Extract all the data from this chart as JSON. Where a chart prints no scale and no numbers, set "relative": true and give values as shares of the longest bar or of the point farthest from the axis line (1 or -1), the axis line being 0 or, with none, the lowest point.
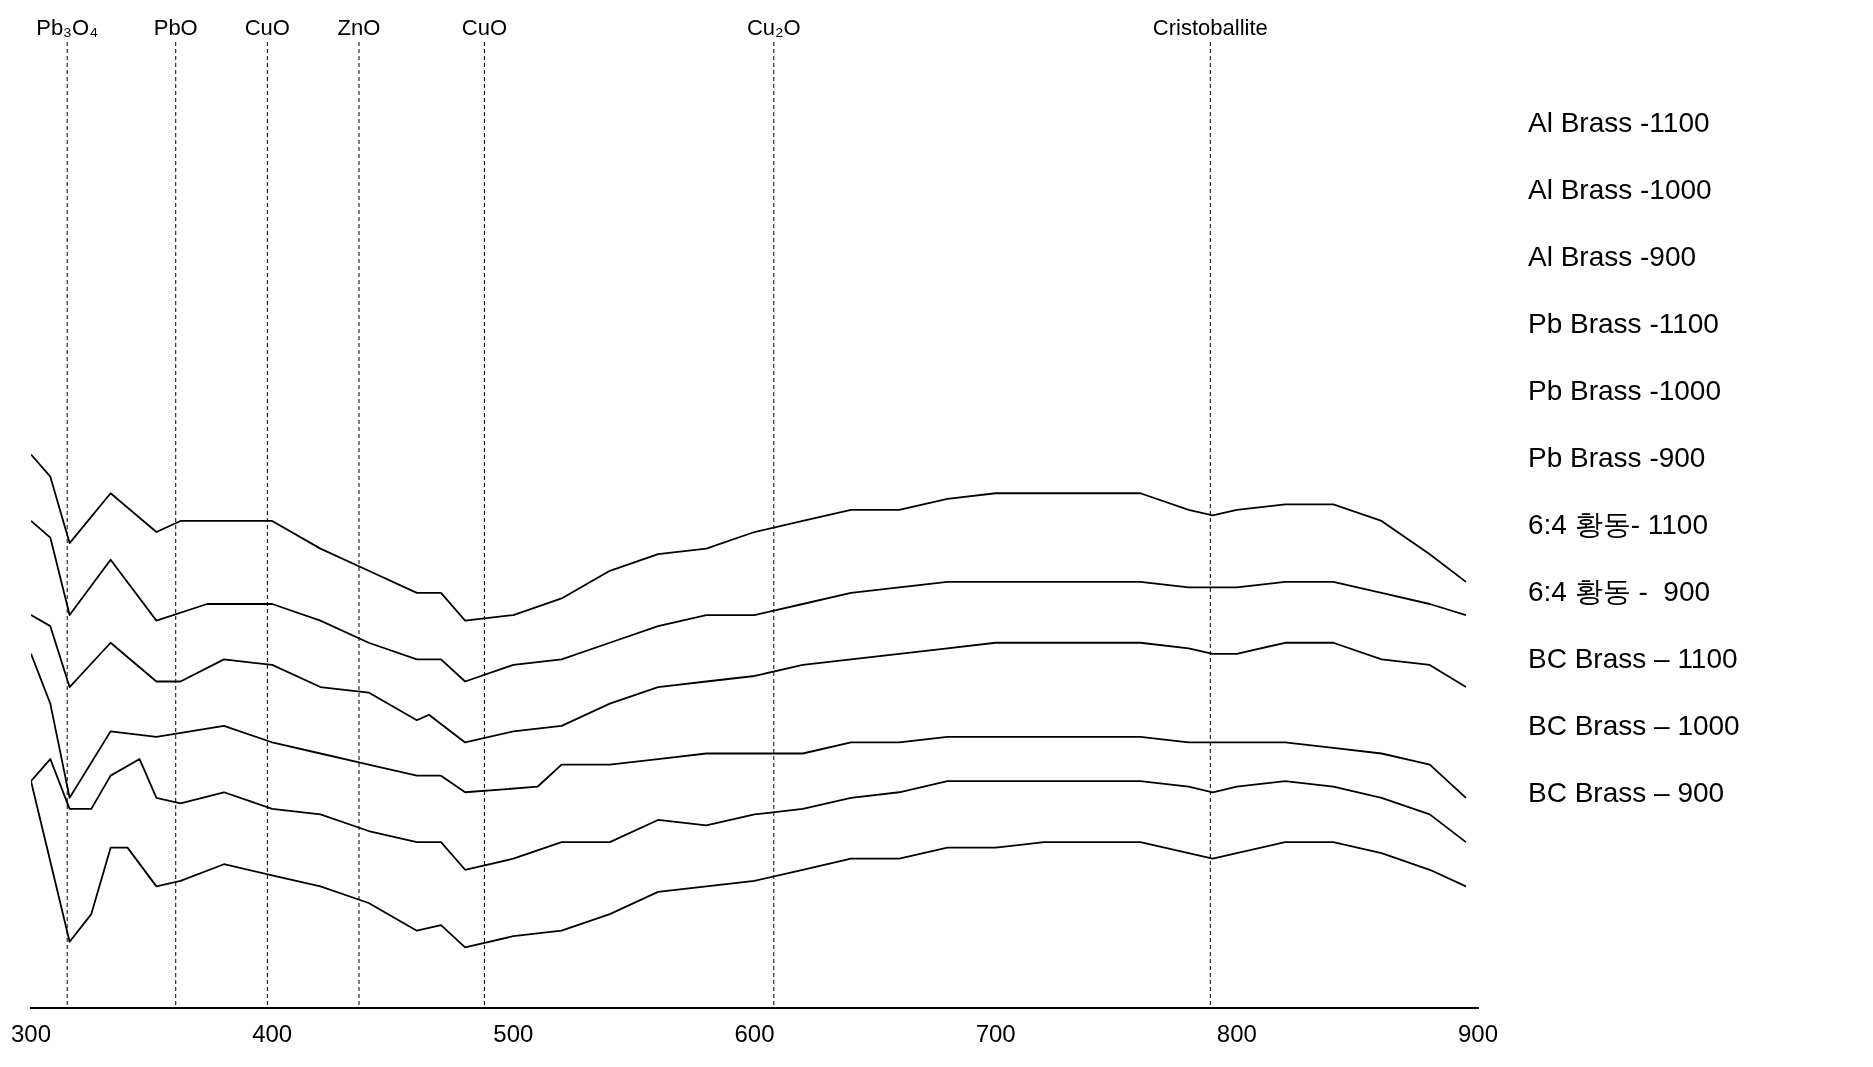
{
  "chart_data": {
    "type": "line",
    "relative": true,
    "xlim": [
      300,
      900
    ],
    "xticks": [
      300,
      400,
      500,
      600,
      700,
      800,
      900
    ],
    "grid": false,
    "legend": false,
    "marker": "none",
    "line_style": "solid",
    "series": [
      {
        "color": "#000000",
        "x": [
          300,
          308,
          316,
          333,
          352,
          362,
          380,
          400,
          420,
          440,
          460,
          470,
          480,
          500,
          520,
          540,
          560,
          580,
          600,
          620,
          640,
          660,
          680,
          700,
          720,
          740,
          760,
          780,
          790,
          800,
          820,
          840,
          860,
          880,
          895
        ],
        "values": [
          1.0,
          0.96,
          0.84,
          0.93,
          0.86,
          0.88,
          0.88,
          0.88,
          0.83,
          0.79,
          0.75,
          0.75,
          0.7,
          0.71,
          0.74,
          0.79,
          0.82,
          0.83,
          0.86,
          0.88,
          0.9,
          0.9,
          0.92,
          0.93,
          0.93,
          0.93,
          0.93,
          0.9,
          0.89,
          0.9,
          0.91,
          0.91,
          0.88,
          0.82,
          0.77
        ]
      },
      {
        "color": "#000000",
        "x": [
          300,
          308,
          316,
          333,
          352,
          373,
          400,
          420,
          440,
          460,
          470,
          480,
          500,
          520,
          540,
          560,
          580,
          600,
          620,
          640,
          660,
          680,
          700,
          720,
          740,
          760,
          780,
          790,
          800,
          820,
          840,
          860,
          880,
          895
        ],
        "values": [
          0.88,
          0.85,
          0.71,
          0.81,
          0.7,
          0.73,
          0.73,
          0.7,
          0.66,
          0.63,
          0.63,
          0.59,
          0.62,
          0.63,
          0.66,
          0.69,
          0.71,
          0.71,
          0.73,
          0.75,
          0.76,
          0.77,
          0.77,
          0.77,
          0.77,
          0.77,
          0.76,
          0.76,
          0.76,
          0.77,
          0.77,
          0.75,
          0.73,
          0.71
        ]
      },
      {
        "color": "#000000",
        "x": [
          300,
          308,
          316,
          333,
          352,
          362,
          380,
          400,
          420,
          440,
          460,
          465,
          480,
          500,
          520,
          540,
          560,
          580,
          600,
          620,
          640,
          660,
          680,
          700,
          720,
          740,
          760,
          780,
          790,
          800,
          820,
          840,
          860,
          880,
          895
        ],
        "values": [
          0.71,
          0.69,
          0.58,
          0.66,
          0.59,
          0.59,
          0.63,
          0.62,
          0.58,
          0.57,
          0.52,
          0.53,
          0.48,
          0.5,
          0.51,
          0.55,
          0.58,
          0.59,
          0.6,
          0.62,
          0.63,
          0.64,
          0.65,
          0.66,
          0.66,
          0.66,
          0.66,
          0.65,
          0.64,
          0.64,
          0.66,
          0.66,
          0.63,
          0.62,
          0.58
        ]
      },
      {
        "color": "#000000",
        "x": [
          300,
          308,
          316,
          333,
          352,
          380,
          400,
          420,
          440,
          460,
          470,
          480,
          510,
          520,
          540,
          560,
          580,
          600,
          620,
          640,
          660,
          680,
          700,
          720,
          740,
          760,
          780,
          790,
          800,
          820,
          840,
          860,
          880,
          895
        ],
        "values": [
          0.64,
          0.55,
          0.38,
          0.5,
          0.49,
          0.51,
          0.48,
          0.46,
          0.44,
          0.42,
          0.42,
          0.39,
          0.4,
          0.44,
          0.44,
          0.45,
          0.46,
          0.46,
          0.46,
          0.48,
          0.48,
          0.49,
          0.49,
          0.49,
          0.49,
          0.49,
          0.48,
          0.48,
          0.48,
          0.48,
          0.47,
          0.46,
          0.44,
          0.38
        ]
      },
      {
        "color": "#000000",
        "x": [
          300,
          308,
          316,
          325,
          333,
          345,
          352,
          362,
          380,
          400,
          420,
          440,
          460,
          470,
          480,
          500,
          520,
          540,
          560,
          580,
          600,
          620,
          640,
          660,
          680,
          700,
          720,
          740,
          760,
          780,
          790,
          800,
          820,
          840,
          860,
          880,
          895
        ],
        "values": [
          0.41,
          0.45,
          0.36,
          0.36,
          0.42,
          0.45,
          0.38,
          0.37,
          0.39,
          0.36,
          0.35,
          0.32,
          0.3,
          0.3,
          0.25,
          0.27,
          0.3,
          0.3,
          0.34,
          0.33,
          0.35,
          0.36,
          0.38,
          0.39,
          0.41,
          0.41,
          0.41,
          0.41,
          0.41,
          0.4,
          0.39,
          0.4,
          0.41,
          0.4,
          0.38,
          0.35,
          0.3
        ]
      },
      {
        "color": "#000000",
        "x": [
          300,
          316,
          325,
          333,
          340,
          352,
          362,
          380,
          400,
          420,
          440,
          460,
          470,
          480,
          500,
          520,
          540,
          560,
          580,
          600,
          620,
          640,
          660,
          680,
          700,
          720,
          740,
          760,
          780,
          790,
          800,
          820,
          840,
          860,
          880,
          895
        ],
        "values": [
          0.41,
          0.12,
          0.17,
          0.29,
          0.29,
          0.22,
          0.23,
          0.26,
          0.24,
          0.22,
          0.19,
          0.14,
          0.15,
          0.11,
          0.13,
          0.14,
          0.17,
          0.21,
          0.22,
          0.23,
          0.25,
          0.27,
          0.27,
          0.29,
          0.29,
          0.3,
          0.3,
          0.3,
          0.28,
          0.27,
          0.28,
          0.3,
          0.3,
          0.28,
          0.25,
          0.22
        ]
      }
    ],
    "ref_lines": [
      {
        "axis": "x",
        "value": 315,
        "label": "Pb₃O₄",
        "color": "#000000",
        "line_style": "dashed"
      },
      {
        "axis": "x",
        "value": 360,
        "label": "PbO",
        "color": "#000000",
        "line_style": "dashed"
      },
      {
        "axis": "x",
        "value": 398,
        "label": "CuO",
        "color": "#000000",
        "line_style": "dashed"
      },
      {
        "axis": "x",
        "value": 436,
        "label": "ZnO",
        "color": "#000000",
        "line_style": "dashed"
      },
      {
        "axis": "x",
        "value": 488,
        "label": "CuO",
        "color": "#000000",
        "line_style": "dashed"
      },
      {
        "axis": "x",
        "value": 608,
        "label": "Cu₂O",
        "color": "#000000",
        "line_style": "dashed"
      },
      {
        "axis": "x",
        "value": 789,
        "label": "Cristoballite",
        "color": "#000000",
        "line_style": "dashed"
      }
    ],
    "annotations": [
      "Al Brass -1100",
      "Al Brass -1000",
      "Al Brass -900",
      "Pb Brass -1100",
      "Pb Brass -1000",
      "Pb Brass -900",
      "6:4 황동- 1100",
      "6:4 황동 -  900",
      "BC Brass – 1100",
      "BC Brass – 1000",
      "BC Brass – 900"
    ]
  }
}
